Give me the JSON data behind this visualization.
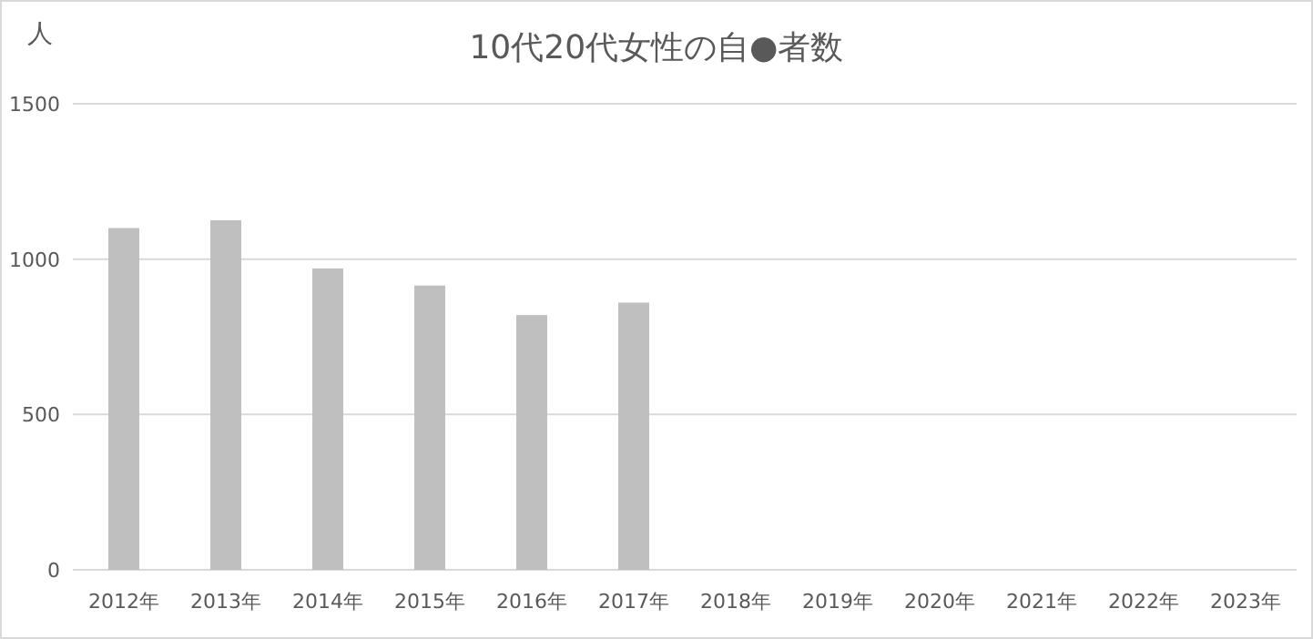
{
  "chart_data": {
    "type": "bar",
    "title": "10代20代女性の自●者数",
    "ylabel": "人",
    "categories": [
      "2012年",
      "2013年",
      "2014年",
      "2015年",
      "2016年",
      "2017年",
      "2018年",
      "2019年",
      "2020年",
      "2021年",
      "2022年",
      "2023年"
    ],
    "values": [
      1100,
      1125,
      970,
      915,
      820,
      860,
      null,
      null,
      null,
      null,
      null,
      null
    ],
    "color": "#bfbfbf",
    "ylim": [
      0,
      1500
    ],
    "yticks": [
      0,
      500,
      1000,
      1500
    ],
    "grid": "y"
  }
}
